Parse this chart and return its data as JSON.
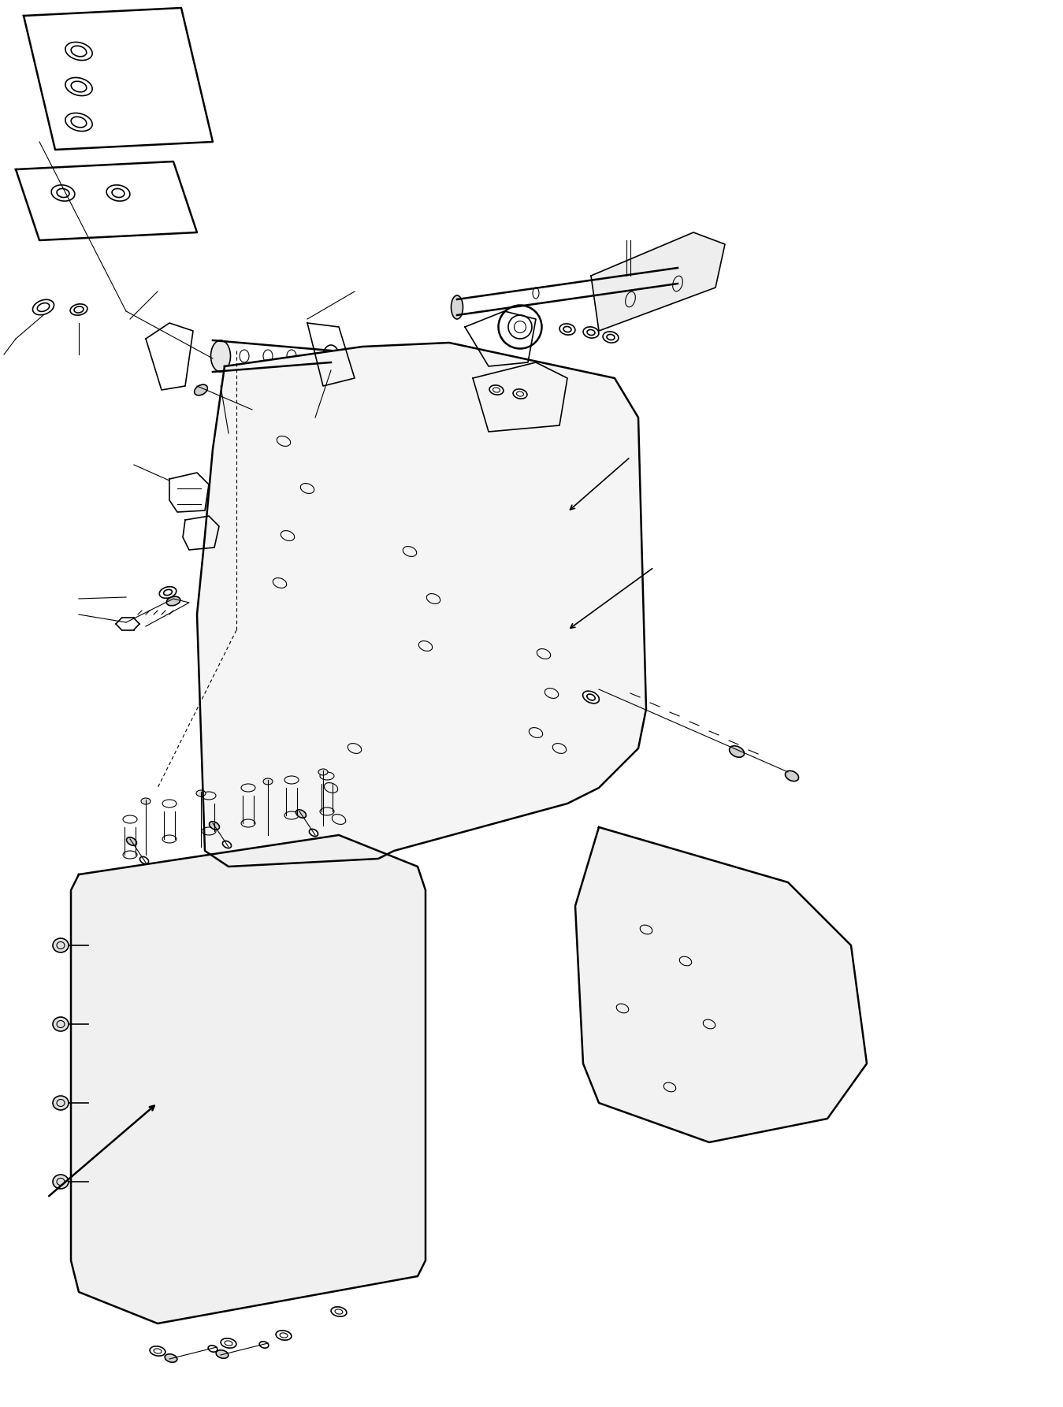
{
  "title": "",
  "background_color": "#ffffff",
  "line_color": "#000000",
  "figure_width": 13.49,
  "figure_height": 17.86,
  "dpi": 100
}
